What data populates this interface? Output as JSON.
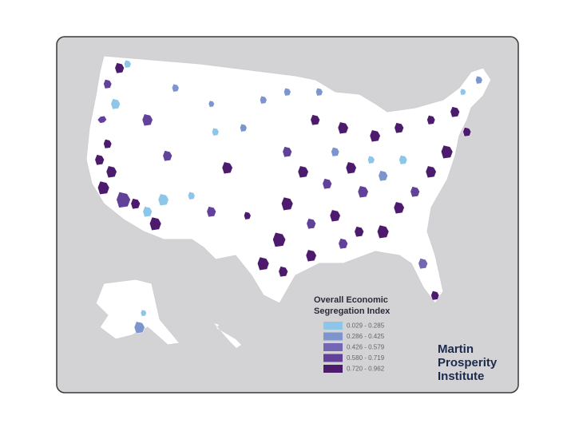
{
  "legend": {
    "title": [
      "Overall Economic",
      "Segregation Index"
    ],
    "items": [
      {
        "label": "0.029 - 0.285",
        "color": "#8ec6ea"
      },
      {
        "label": "0.286 - 0.425",
        "color": "#7c95cf"
      },
      {
        "label": "0.426 - 0.579",
        "color": "#7466b4"
      },
      {
        "label": "0.580 - 0.719",
        "color": "#62419a"
      },
      {
        "label": "0.720 - 0.962",
        "color": "#4d1b6e"
      }
    ]
  },
  "logo": [
    "Martin",
    "Prosperity",
    "Institute"
  ]
}
